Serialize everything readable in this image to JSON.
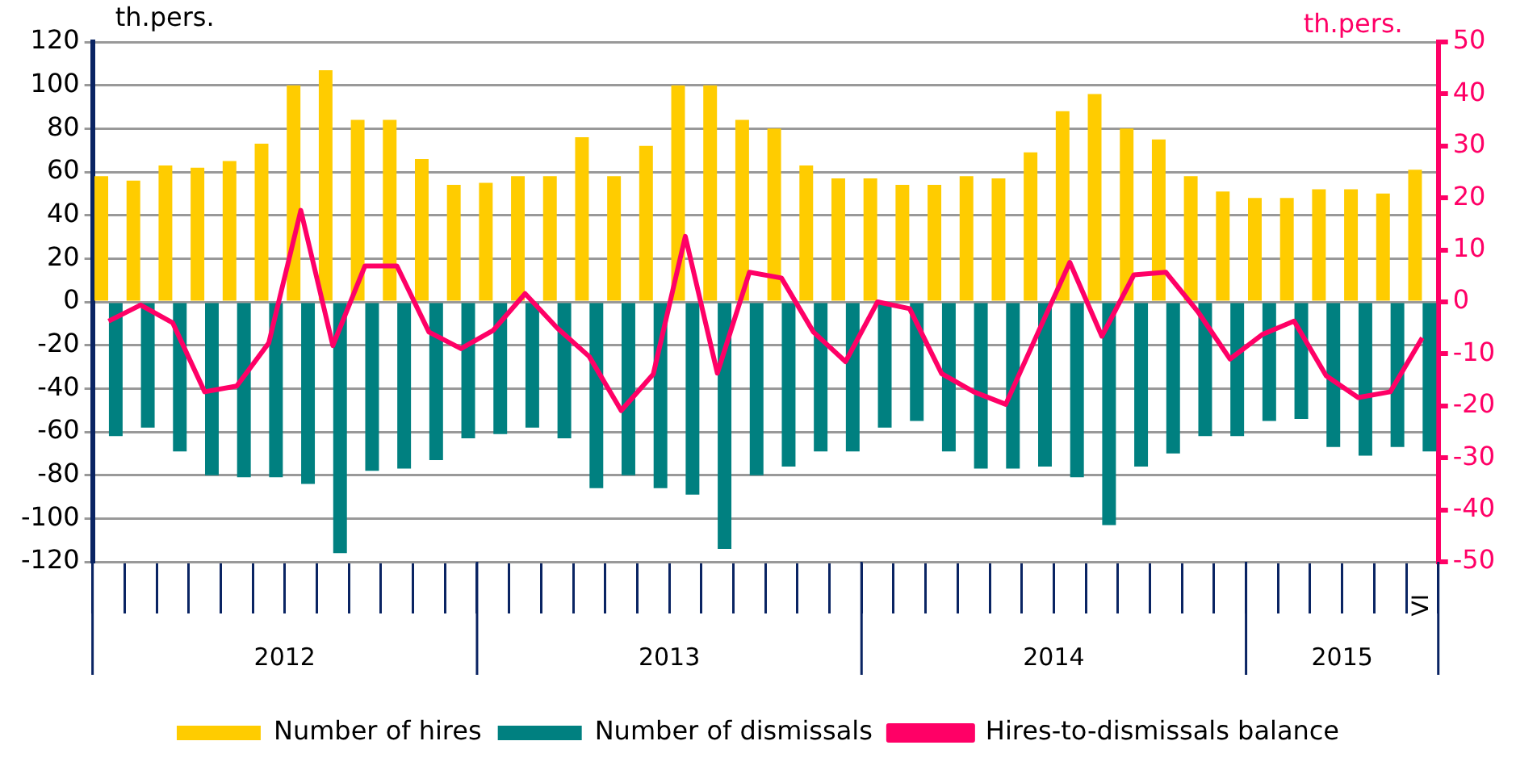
{
  "chart_data": {
    "type": "bar",
    "ylabel": "th.pers.",
    "y2label": "th.pers.",
    "categories": [
      null,
      null,
      null,
      null,
      null,
      null,
      null,
      null,
      null,
      null,
      null,
      null,
      null,
      null,
      null,
      null,
      null,
      null,
      null,
      null,
      null,
      null,
      null,
      null,
      null,
      null,
      null,
      null,
      null,
      null,
      null,
      null,
      null,
      null,
      null,
      null,
      null,
      null,
      null,
      null,
      null,
      "VI"
    ],
    "annotations": [
      "2012",
      "2013",
      "2014",
      "2015"
    ],
    "series": [
      {
        "name": "Number of hires",
        "color": "#ffcc00",
        "values": [
          58,
          56,
          63,
          62,
          65,
          73,
          100,
          107,
          84,
          84,
          66,
          54,
          55,
          58,
          58,
          76,
          58,
          72,
          100,
          100,
          84,
          80,
          63,
          57,
          57,
          54,
          54,
          58,
          57,
          69,
          88,
          96,
          80,
          75,
          58,
          51,
          48,
          48,
          52,
          52,
          50,
          61
        ]
      },
      {
        "name": "Number of dismissals",
        "color": "#008080",
        "values": [
          -62,
          -58,
          -69,
          -80,
          -81,
          -81,
          -84,
          -116,
          -78,
          -77,
          -73,
          -63,
          -61,
          -58,
          -63,
          -86,
          -80,
          -86,
          -89,
          -114,
          -80,
          -76,
          -69,
          -69,
          -58,
          -55,
          -69,
          -77,
          -77,
          -76,
          -81,
          -103,
          -76,
          -70,
          -62,
          -62,
          -55,
          -54,
          -67,
          -71,
          -67,
          -69
        ]
      },
      {
        "name": "Hires-to-dismissals balance",
        "type": "line",
        "axis": "y2",
        "color": "#ff0066",
        "values": [
          -3.7,
          -0.6,
          -4,
          -17.3,
          -16.2,
          -7.9,
          17.6,
          -8.4,
          6.9,
          6.9,
          -5.8,
          -9,
          -5.5,
          1.6,
          -5,
          -10.5,
          -20.9,
          -13.9,
          12.6,
          -13.7,
          5.7,
          4.6,
          -5.8,
          -11.5,
          0,
          -1.3,
          -13.8,
          -17.3,
          -19.7,
          -6,
          7.6,
          -6.6,
          5.2,
          5.7,
          -1.9,
          -11,
          -6.3,
          -3.7,
          -14.2,
          -18.4,
          -17.3,
          -6.9
        ]
      }
    ],
    "ylim": [
      -120,
      120
    ],
    "yticks": [
      -120,
      -100,
      -80,
      -60,
      -40,
      -20,
      0,
      20,
      40,
      60,
      80,
      100,
      120
    ],
    "y2lim": [
      -50,
      50
    ],
    "y2ticks": [
      -50,
      -40,
      -30,
      -20,
      -10,
      0,
      10,
      20,
      30,
      40,
      50
    ],
    "grid": "y",
    "legend": "bottom",
    "marker": "none",
    "line_style": "solid"
  }
}
